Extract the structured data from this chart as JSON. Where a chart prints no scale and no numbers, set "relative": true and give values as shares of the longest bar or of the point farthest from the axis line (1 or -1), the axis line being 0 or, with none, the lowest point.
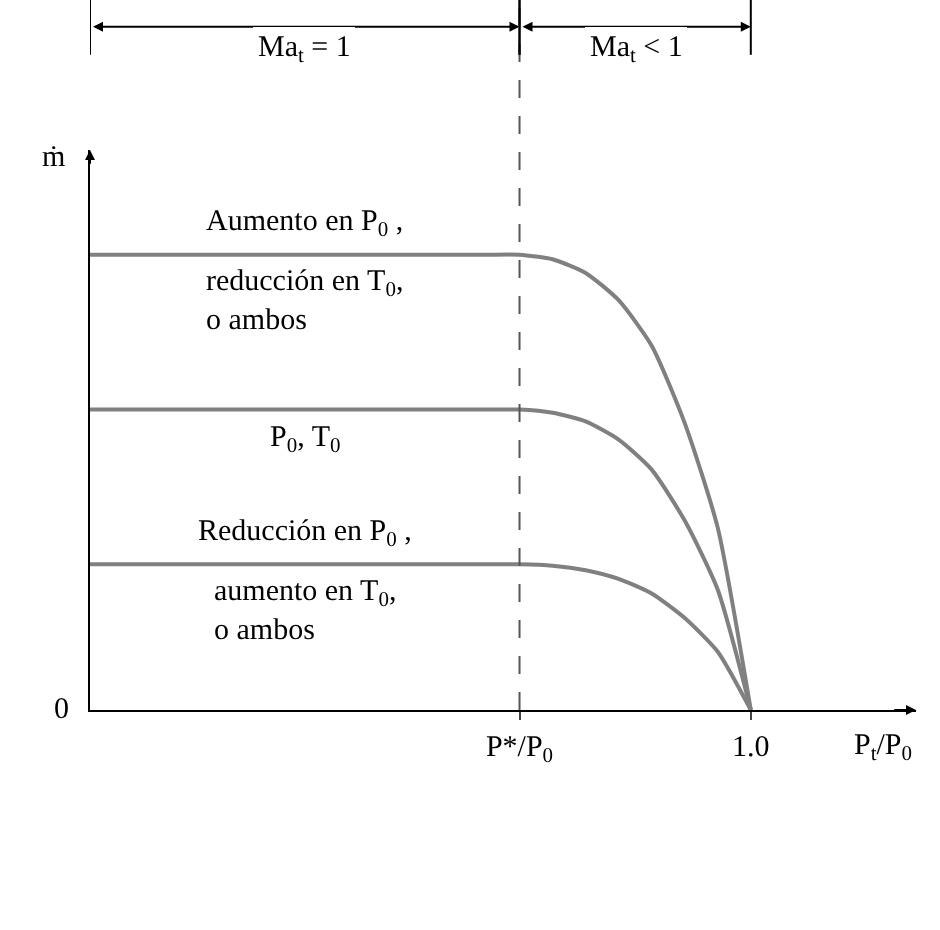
{
  "chart_data": {
    "type": "line",
    "relative": true,
    "xlabel": "P$_{t}$/P$_{0}$",
    "ylabel": "ṁ",
    "categories": [
      null,
      null,
      null,
      null,
      null,
      null,
      null,
      null,
      null,
      null,
      null,
      null,
      null,
      "P*/P$_{0}$",
      null,
      null,
      null,
      null,
      null,
      null,
      "1.0",
      null,
      null,
      null,
      null,
      null
    ],
    "annotations": [
      "0",
      "Ma$_{t}$ = 1",
      "Ma$_{t}$ < 1"
    ],
    "legend": false,
    "grid": false,
    "marker": "none",
    "line_style": "solid",
    "ref_lines": [
      {
        "axis": "x",
        "value": "P*/P$_{0}$",
        "line_style": "dashed",
        "color": "#555555"
      }
    ],
    "series": [
      {
        "name": "Aumento en P$_{0}$ ,\nreducción en T$_{0}$,\no ambos",
        "color": "#808080",
        "values": [
          1,
          1,
          1,
          1,
          1,
          1,
          1,
          1,
          1,
          1,
          1,
          1,
          1,
          1,
          0.99,
          0.96,
          0.9,
          0.8,
          0.63,
          0.4,
          0,
          null,
          null,
          null,
          null,
          null
        ]
      },
      {
        "name": "P$_{0}$, T$_{0}$",
        "color": "#808080",
        "values": [
          0.66,
          0.66,
          0.66,
          0.66,
          0.66,
          0.66,
          0.66,
          0.66,
          0.66,
          0.66,
          0.66,
          0.66,
          0.66,
          0.66,
          0.653,
          0.634,
          0.594,
          0.528,
          0.416,
          0.264,
          0,
          null,
          null,
          null,
          null,
          null
        ]
      },
      {
        "name": "Reducción en P$_{0}$ ,\naumento en T$_{0}$,\no ambos",
        "color": "#808080",
        "values": [
          0.32,
          0.32,
          0.32,
          0.32,
          0.32,
          0.32,
          0.32,
          0.32,
          0.32,
          0.32,
          0.32,
          0.32,
          0.32,
          0.32,
          0.317,
          0.307,
          0.288,
          0.256,
          0.202,
          0.128,
          0,
          null,
          null,
          null,
          null,
          null
        ]
      }
    ]
  }
}
